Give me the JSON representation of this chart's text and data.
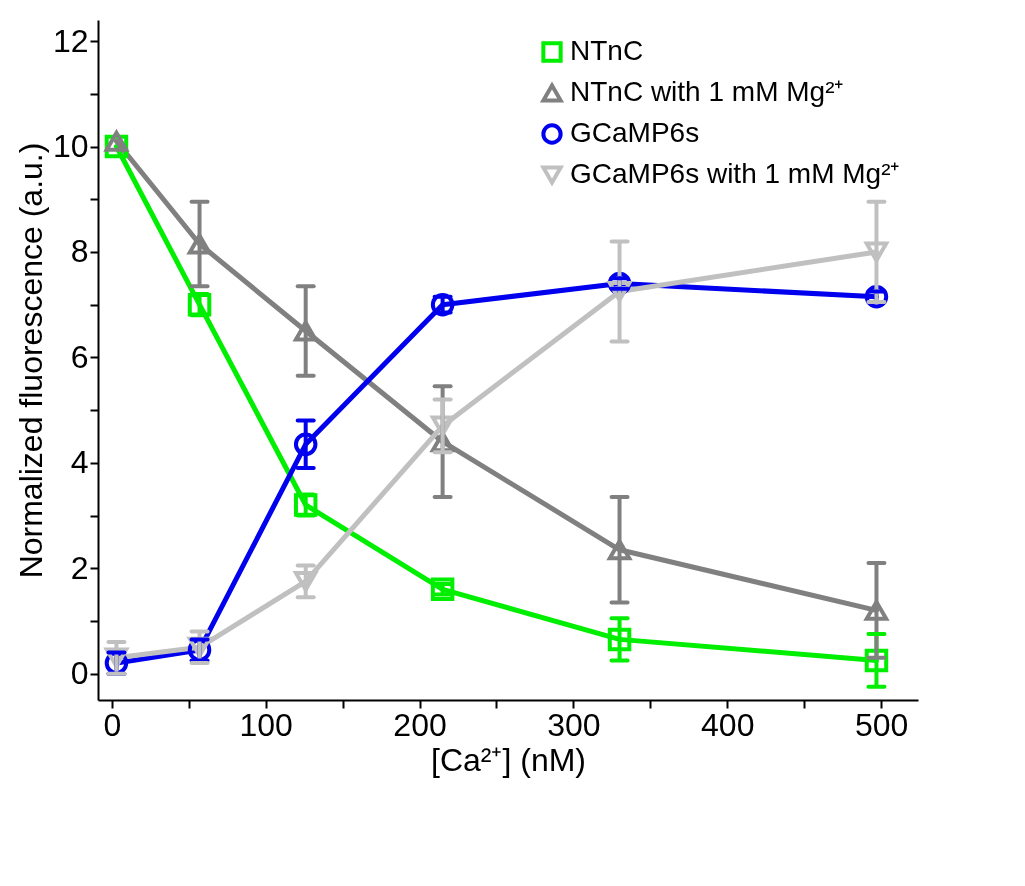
{
  "chart_data": {
    "type": "line",
    "xlabel": "[Ca²⁺] (nM)",
    "ylabel": "Normalized fluorescence (a.u.)",
    "x": [
      3,
      57,
      126,
      215,
      330,
      497
    ],
    "xlim": [
      -9,
      524
    ],
    "xticks": [
      0,
      {
        "value": 50,
        "label": null
      },
      100,
      {
        "value": 150,
        "label": null
      },
      200,
      {
        "value": 250,
        "label": null
      },
      300,
      {
        "value": 350,
        "label": null
      },
      400,
      {
        "value": 450,
        "label": null
      },
      500
    ],
    "ylim": [
      -0.5,
      12.4
    ],
    "yticks": [
      0,
      {
        "value": 1,
        "label": null
      },
      2,
      {
        "value": 3,
        "label": null
      },
      4,
      {
        "value": 5,
        "label": null
      },
      6,
      {
        "value": 7,
        "label": null
      },
      8,
      {
        "value": 9,
        "label": null
      },
      10,
      {
        "value": 11,
        "label": null
      },
      12
    ],
    "grid": false,
    "legend": "top right",
    "line_style": "solid",
    "series": [
      {
        "name": "NTnC",
        "color": "#00ee00",
        "marker": "square",
        "values": [
          10,
          7.0,
          3.2,
          1.6,
          0.65,
          0.25
        ],
        "errors": [
          null,
          0.2,
          0.2,
          0.1,
          0.4,
          0.5
        ]
      },
      {
        "name": "NTnC with 1 mM Mg²⁺",
        "color": "#808080",
        "marker": "triangle",
        "values": [
          10.1,
          8.15,
          6.5,
          4.4,
          2.35,
          1.2
        ],
        "errors": [
          null,
          0.8,
          0.85,
          1.05,
          1.0,
          0.9
        ]
      },
      {
        "name": "GCaMP6s",
        "color": "#0000ee",
        "marker": "circle",
        "values": [
          0.2,
          0.45,
          4.35,
          7.0,
          7.4,
          7.15
        ],
        "errors": [
          0.2,
          0.2,
          0.45,
          0.15,
          0.1,
          0.1
        ]
      },
      {
        "name": "GCaMP6s with 1 mM Mg²⁺",
        "color": "#c0c0c0",
        "marker": "triangle-down",
        "values": [
          0.3,
          0.5,
          1.75,
          4.7,
          7.25,
          8.0
        ],
        "errors": [
          0.3,
          0.3,
          0.3,
          0.5,
          0.95,
          0.95
        ]
      }
    ]
  }
}
